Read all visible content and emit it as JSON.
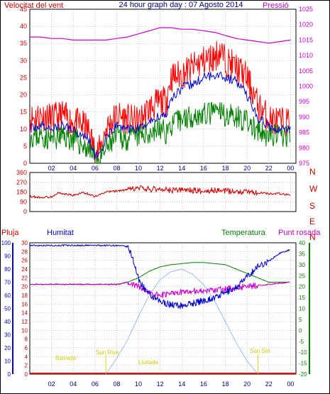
{
  "header": {
    "left_label": "Velocitat del vent",
    "title": "24 hour graph day : 07 Agosto 2014",
    "right_label": "Pressió"
  },
  "footer_labels": {
    "pluja": "Pluja",
    "humitat": "Humitat",
    "temperatura": "Temperatura",
    "punt_rosada": "Punt rosada"
  },
  "colors": {
    "gust": "#ff0000",
    "wind_avg": "#0000cc",
    "wind_min": "#008000",
    "pressure": "#cc00cc",
    "direction": "#cc0000",
    "rain": "#ff0000",
    "humidity": "#0000cc",
    "temperature": "#008000",
    "dewpoint": "#cc00cc",
    "solar": "#99bbee",
    "sun_text": "#cccc00",
    "frame": "#000000",
    "grid": "#b0b0b0"
  },
  "chart_data": [
    {
      "type": "line",
      "name": "wind_pressure",
      "x_ticks": [
        "02",
        "04",
        "06",
        "08",
        "10",
        "12",
        "14",
        "16",
        "18",
        "20",
        "22",
        "00"
      ],
      "left_axis": {
        "label": "Velocitat del vent",
        "ticks": [
          "0",
          "5",
          "10",
          "15",
          "20",
          "25",
          "30",
          "35",
          "40",
          "45"
        ],
        "ylim": [
          0,
          45
        ]
      },
      "right_axis": {
        "label": "Pressió",
        "ticks": [
          "975",
          "980",
          "985",
          "990",
          "995",
          "1000",
          "1005",
          "1010",
          "1015",
          "1020",
          "1025"
        ],
        "ylim": [
          975,
          1025
        ]
      },
      "x_range_hours": [
        0,
        24.5
      ],
      "series": [
        {
          "name": "gust",
          "axis": "left",
          "x": [
            0,
            1,
            2,
            3,
            4,
            5,
            5.5,
            6,
            6.5,
            7,
            8,
            9,
            10,
            11,
            12,
            12.5,
            13,
            14,
            15,
            16,
            17,
            17.5,
            18,
            19,
            20,
            21,
            22,
            23,
            24
          ],
          "values": [
            13,
            14,
            13,
            14,
            12,
            11,
            9,
            3,
            4,
            10,
            14,
            13,
            12,
            16,
            18,
            18,
            25,
            26,
            28,
            30,
            31,
            33,
            30,
            28,
            25,
            17,
            13,
            12,
            12
          ]
        },
        {
          "name": "wind_avg",
          "axis": "left",
          "x": [
            0,
            1,
            2,
            3,
            4,
            5,
            5.5,
            6,
            6.5,
            7,
            8,
            9,
            10,
            11,
            12,
            12.5,
            13,
            14,
            15,
            16,
            17,
            17.5,
            18,
            19,
            20,
            21,
            22,
            23,
            24
          ],
          "values": [
            10,
            11,
            10,
            11,
            10,
            8,
            7,
            2,
            3,
            7,
            11,
            10,
            10,
            12,
            14,
            14,
            19,
            22,
            23,
            25,
            26,
            26,
            25,
            24,
            20,
            13,
            11,
            10,
            10
          ]
        },
        {
          "name": "wind_min",
          "axis": "left",
          "x": [
            0,
            1,
            2,
            3,
            4,
            5,
            5.5,
            6,
            6.5,
            7,
            8,
            9,
            10,
            11,
            12,
            12.5,
            13,
            14,
            15,
            16,
            17,
            17.5,
            18,
            19,
            20,
            21,
            22,
            23,
            24
          ],
          "values": [
            8,
            8,
            7,
            8,
            7,
            5,
            4,
            1,
            1,
            4,
            8,
            7,
            8,
            9,
            10,
            9,
            11,
            13,
            14,
            14,
            15,
            15,
            14,
            14,
            12,
            9,
            8,
            8,
            8
          ]
        },
        {
          "name": "pressure",
          "axis": "right",
          "x": [
            0,
            1,
            2,
            3,
            4,
            5,
            6,
            7,
            8,
            9,
            10,
            11,
            12,
            13,
            14,
            15,
            16,
            17,
            18,
            19,
            20,
            21,
            22,
            23,
            24
          ],
          "values": [
            1016,
            1016,
            1015.5,
            1015.5,
            1015,
            1015,
            1015,
            1015,
            1015.5,
            1016,
            1017,
            1018,
            1019,
            1019,
            1018.5,
            1018.5,
            1018,
            1017.5,
            1016.5,
            1015.5,
            1015,
            1014.5,
            1014,
            1014.5,
            1015
          ]
        }
      ]
    },
    {
      "type": "line",
      "name": "wind_direction",
      "y_ticks": [
        "360",
        "270",
        "180",
        "90",
        "0"
      ],
      "y_compass": [
        "N",
        "W",
        "S",
        "E",
        "N"
      ],
      "ylim": [
        0,
        360
      ],
      "series": [
        {
          "name": "direction",
          "x": [
            0,
            1,
            2,
            2.5,
            3,
            4,
            5,
            6,
            7,
            8,
            9,
            10,
            11,
            12,
            13,
            14,
            15,
            16,
            17,
            18,
            19,
            20,
            21,
            22,
            23,
            24
          ],
          "values": [
            140,
            130,
            135,
            170,
            165,
            150,
            175,
            140,
            180,
            190,
            200,
            215,
            205,
            210,
            195,
            200,
            195,
            190,
            195,
            190,
            185,
            185,
            175,
            165,
            165,
            150
          ]
        }
      ]
    },
    {
      "type": "line",
      "name": "rain_humidity_temperature",
      "left_axis_rain": {
        "label": "Pluja",
        "ticks": [
          "0",
          "2",
          "4",
          "6",
          "8",
          "10",
          "12",
          "14",
          "16",
          "18",
          "20",
          "22",
          "24",
          "26",
          "28",
          "30"
        ],
        "ylim": [
          0,
          30
        ]
      },
      "left_axis_humidity": {
        "label": "Humitat",
        "ticks": [
          "0",
          "10",
          "20",
          "30",
          "40",
          "50",
          "60",
          "70",
          "80",
          "90",
          "100"
        ],
        "ylim": [
          0,
          100
        ]
      },
      "right_axis": {
        "label": "Temperatura",
        "ticks": [
          "-20",
          "-15",
          "-10",
          "-5",
          "0",
          "5",
          "10",
          "15",
          "20",
          "25",
          "30",
          "35",
          "40"
        ],
        "ylim": [
          -20,
          40
        ]
      },
      "annotations": [
        "Baixada",
        "Sun Rise",
        "Lluitada",
        "Sun Set"
      ],
      "series": [
        {
          "name": "humidity",
          "axis": "humidity",
          "x": [
            0,
            1,
            2,
            3,
            4,
            5,
            6,
            7,
            8,
            9,
            9.5,
            10,
            11,
            12,
            13,
            14,
            15,
            16,
            17,
            18,
            19,
            20,
            21,
            22,
            23,
            24
          ],
          "values": [
            98,
            98,
            98,
            98,
            98,
            98,
            98,
            98,
            98,
            97,
            88,
            72,
            60,
            55,
            53,
            52,
            54,
            56,
            58,
            62,
            66,
            74,
            82,
            86,
            92,
            95
          ]
        },
        {
          "name": "temperature",
          "axis": "right",
          "x": [
            0,
            1,
            2,
            3,
            4,
            5,
            6,
            7,
            8,
            9,
            10,
            11,
            12,
            13,
            14,
            15,
            16,
            17,
            18,
            19,
            20,
            21,
            22,
            23,
            24
          ],
          "values": [
            21,
            21,
            21,
            21,
            21,
            21,
            21,
            21,
            21,
            22,
            24,
            27,
            29,
            30,
            30.5,
            31,
            31,
            30.5,
            30,
            28,
            26,
            24,
            22,
            22,
            22
          ]
        },
        {
          "name": "dewpoint",
          "axis": "right",
          "x": [
            0,
            1,
            2,
            3,
            4,
            5,
            6,
            7,
            8,
            9,
            10,
            11,
            12,
            13,
            14,
            15,
            16,
            17,
            18,
            19,
            20,
            21,
            22,
            23,
            24
          ],
          "values": [
            21,
            21,
            21,
            21,
            21,
            21,
            21,
            21,
            21,
            22,
            20,
            17,
            16,
            17,
            17.5,
            18,
            18,
            18.5,
            19,
            19.5,
            20,
            20.5,
            21,
            21.5,
            22
          ]
        },
        {
          "name": "solar",
          "axis": "humidity",
          "x": [
            7,
            8,
            9,
            10,
            11,
            12,
            13,
            14,
            15,
            16,
            17,
            18,
            19,
            20,
            21
          ],
          "values": [
            0,
            12,
            26,
            44,
            60,
            72,
            78,
            80,
            76,
            68,
            56,
            40,
            24,
            10,
            0
          ]
        },
        {
          "name": "rain",
          "axis": "rain",
          "x": [
            0,
            24
          ],
          "values": [
            0,
            0
          ]
        }
      ]
    }
  ]
}
